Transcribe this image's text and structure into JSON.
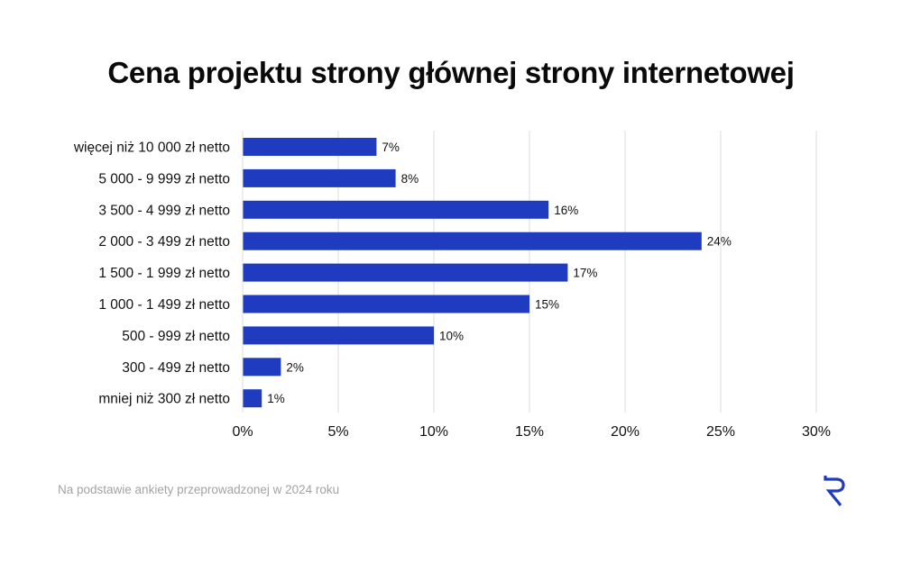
{
  "title": "Cena projektu strony głównej strony internetowej",
  "footnote": "Na podstawie ankiety przeprowadzonej w 2024 roku",
  "colors": {
    "bar": "#1f3bbf",
    "grid": "#dcdcdc",
    "logo": "#1f3bbf"
  },
  "chart_data": {
    "type": "bar",
    "orientation": "horizontal",
    "title": "Cena projektu strony głównej strony internetowej",
    "categories": [
      "więcej niż 10 000 zł netto",
      "5 000 - 9 999 zł netto",
      "3 500 - 4 999 zł netto",
      "2 000 - 3 499 zł netto",
      "1 500 - 1 999 zł netto",
      "1 000 - 1 499 zł netto",
      "500 - 999 zł netto",
      "300 - 499 zł netto",
      "mniej niż 300 zł netto"
    ],
    "values": [
      7,
      8,
      16,
      24,
      17,
      15,
      10,
      2,
      1
    ],
    "value_labels": [
      "7%",
      "8%",
      "16%",
      "24%",
      "17%",
      "15%",
      "10%",
      "2%",
      "1%"
    ],
    "xlim": [
      0,
      30
    ],
    "x_ticks": [
      0,
      5,
      10,
      15,
      20,
      25,
      30
    ],
    "x_tick_labels": [
      "0%",
      "5%",
      "10%",
      "15%",
      "20%",
      "25%",
      "30%"
    ],
    "xlabel": "",
    "ylabel": "",
    "grid": "vertical"
  }
}
